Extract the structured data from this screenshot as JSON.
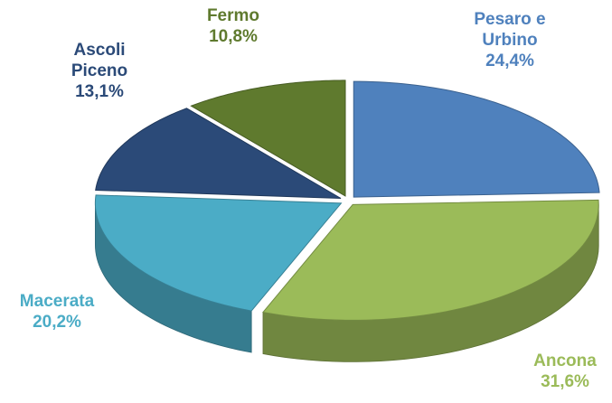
{
  "chart_data": {
    "type": "pie",
    "categories": [
      "Pesaro e Urbino",
      "Ancona",
      "Macerata",
      "Ascoli Piceno",
      "Fermo"
    ],
    "values": [
      24.4,
      31.6,
      20.2,
      13.1,
      10.8
    ],
    "value_labels": [
      "24,4%",
      "31,6%",
      "20,2%",
      "13,1%",
      "10,8%"
    ],
    "colors": [
      "#4f81bd",
      "#9bbb59",
      "#4bacc6",
      "#2b4a78",
      "#5f7a2e"
    ]
  }
}
